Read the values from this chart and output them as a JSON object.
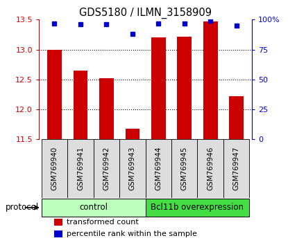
{
  "title": "GDS5180 / ILMN_3158909",
  "samples": [
    "GSM769940",
    "GSM769941",
    "GSM769942",
    "GSM769943",
    "GSM769944",
    "GSM769945",
    "GSM769946",
    "GSM769947"
  ],
  "red_values": [
    13.0,
    12.65,
    12.52,
    11.68,
    13.2,
    13.22,
    13.47,
    12.22
  ],
  "blue_values": [
    97,
    96,
    96,
    88,
    97,
    97,
    99,
    95
  ],
  "ylim_left": [
    11.5,
    13.5
  ],
  "ylim_right": [
    0,
    100
  ],
  "yticks_left": [
    11.5,
    12.0,
    12.5,
    13.0,
    13.5
  ],
  "yticks_right": [
    0,
    25,
    50,
    75,
    100
  ],
  "ytick_labels_right": [
    "0",
    "25",
    "50",
    "75",
    "100%"
  ],
  "bar_color": "#cc0000",
  "dot_color": "#0000cc",
  "bar_width": 0.55,
  "groups": [
    {
      "label": "control",
      "samples": [
        0,
        1,
        2,
        3
      ],
      "color": "#bbffbb"
    },
    {
      "label": "Bcl11b overexpression",
      "samples": [
        4,
        5,
        6,
        7
      ],
      "color": "#44dd44"
    }
  ],
  "protocol_label": "protocol",
  "legend_items": [
    {
      "color": "#cc0000",
      "label": "transformed count"
    },
    {
      "color": "#0000cc",
      "label": "percentile rank within the sample"
    }
  ],
  "grid_color": "black",
  "grid_linestyle": "dotted",
  "grid_linewidth": 0.8,
  "tick_color_left": "#cc0000",
  "tick_color_right": "#0000cc",
  "bg_color": "#ffffff",
  "sample_box_color": "#dddddd",
  "sample_label_fontsize": 7.5,
  "title_fontsize": 10.5
}
